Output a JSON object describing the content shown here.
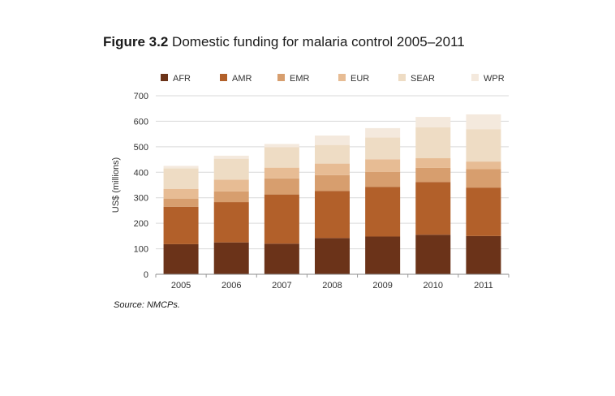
{
  "figure": {
    "number": "Figure 3.2",
    "title": "Domestic funding for malaria control 2005–2011",
    "source_label": "Source:",
    "source_text": "NMCPs."
  },
  "chart_data": {
    "type": "bar",
    "stacked": true,
    "categories": [
      "2005",
      "2006",
      "2007",
      "2008",
      "2009",
      "2010",
      "2011"
    ],
    "ylabel": "US$ (millions)",
    "xlabel": "",
    "ylim": [
      0,
      700
    ],
    "yticks": [
      0,
      100,
      200,
      300,
      400,
      500,
      600,
      700
    ],
    "grid": true,
    "legend_position": "top",
    "series": [
      {
        "name": "AFR",
        "color": "#6b3319",
        "values": [
          118,
          125,
          120,
          142,
          148,
          155,
          150
        ]
      },
      {
        "name": "AMR",
        "color": "#b2602a",
        "values": [
          147,
          158,
          193,
          185,
          195,
          207,
          190
        ]
      },
      {
        "name": "EMR",
        "color": "#d79e6e",
        "values": [
          32,
          42,
          63,
          62,
          58,
          55,
          72
        ]
      },
      {
        "name": "EUR",
        "color": "#e7bc94",
        "values": [
          38,
          46,
          42,
          45,
          50,
          38,
          30
        ]
      },
      {
        "name": "SEAR",
        "color": "#eedcc4",
        "values": [
          80,
          82,
          80,
          73,
          85,
          121,
          127
        ]
      },
      {
        "name": "WPR",
        "color": "#f4e9dd",
        "values": [
          10,
          12,
          13,
          37,
          37,
          41,
          58
        ]
      }
    ]
  }
}
